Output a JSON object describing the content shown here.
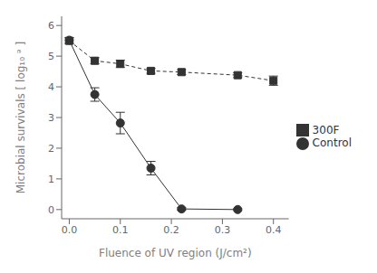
{
  "chart_data": {
    "type": "line",
    "xlabel": "Fluence  of  UV region  (J/cm²)",
    "ylabel": "Microbial  survivals  [ log₁₀ ᵊ ]",
    "xlim": [
      -0.015,
      0.43
    ],
    "ylim": [
      -0.3,
      6.3
    ],
    "xticks": [
      {
        "value": 0.0,
        "label": "0.0"
      },
      0.1,
      0.2,
      0.3,
      0.4
    ],
    "yticks": [
      0,
      1,
      2,
      3,
      4,
      5,
      6
    ],
    "grid": false,
    "legend": "right",
    "series": [
      {
        "name": "300F",
        "color": "#333333",
        "line_style": "dashed",
        "marker": "square",
        "x": [
          0.0,
          0.05,
          0.1,
          0.16,
          0.22,
          0.33,
          0.4
        ],
        "values": [
          5.5,
          4.85,
          4.75,
          4.52,
          4.48,
          4.38,
          4.2
        ],
        "errors": [
          0.1,
          0.1,
          0.12,
          0.08,
          0.08,
          0.08,
          0.15
        ]
      },
      {
        "name": "Control",
        "color": "#333333",
        "line_style": "solid",
        "marker": "circle",
        "x": [
          0.0,
          0.05,
          0.1,
          0.16,
          0.22,
          0.33
        ],
        "values": [
          5.52,
          3.75,
          2.82,
          1.35,
          0.02,
          0.0
        ],
        "errors": [
          0.08,
          0.22,
          0.35,
          0.22,
          0.04,
          0.03
        ]
      }
    ]
  }
}
